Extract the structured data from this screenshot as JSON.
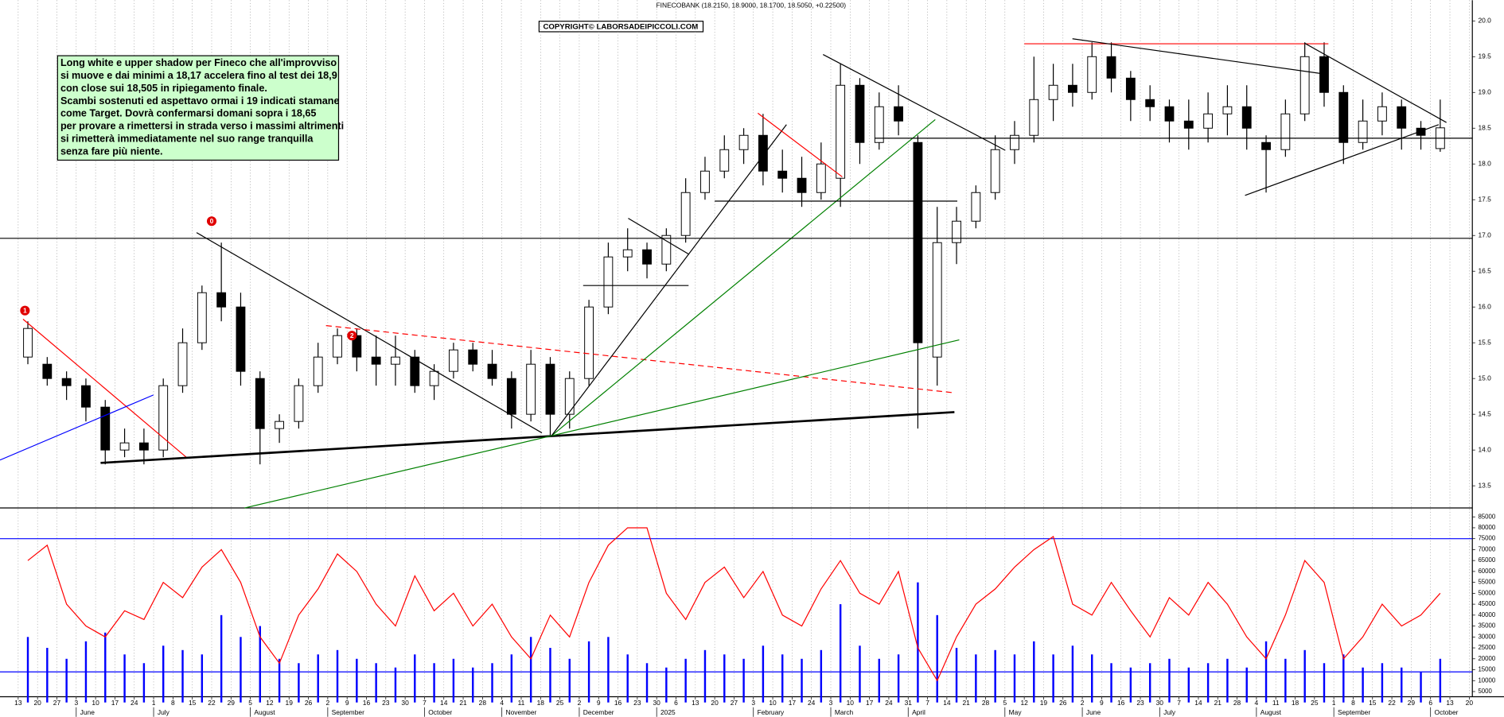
{
  "chart_data": {
    "type": "candlestick",
    "title": "FINECOBANK (18.2150, 18.9000, 18.1700, 18.5050, +0.22500)",
    "copyright": "COPYRIGHT© LABORSADEIPICCOLI.COM",
    "comment": [
      "Long white e upper shadow per Fineco che all'improvviso",
      "si muove e dai minimi a 18,17 accelera fino al test dei 18,9",
      "con close sui 18,505 in ripiegamento finale.",
      "Scambi sostenuti ed aspettavo ormai i 19 indicati stamane",
      "come Target. Dovrà confermarsi domani sopra i 18,65",
      "per provare a rimettersi in strada verso i massimi altrimenti",
      "si rimetterà immediatamente nel suo range tranquilla",
      "senza fare più niente."
    ],
    "grid": true,
    "xlim": [
      -0.94,
      75.16
    ],
    "ylim": [
      13.19,
      20.29
    ],
    "yticks": [
      {
        "value": 13.5,
        "label": "13.5"
      },
      {
        "value": 14,
        "label": "14.0"
      },
      {
        "value": 14.5,
        "label": "14.5"
      },
      {
        "value": 15,
        "label": "15.0"
      },
      {
        "value": 15.5,
        "label": "15.5"
      },
      {
        "value": 16,
        "label": "16.0"
      },
      {
        "value": 16.5,
        "label": "16.5"
      },
      {
        "value": 17,
        "label": "17.0"
      },
      {
        "value": 17.5,
        "label": "17.5"
      },
      {
        "value": 18,
        "label": "18.0"
      },
      {
        "value": 18.5,
        "label": "18.5"
      },
      {
        "value": 19,
        "label": "19.0"
      },
      {
        "value": 19.5,
        "label": "19.5"
      },
      {
        "value": 20,
        "label": "20.0"
      }
    ],
    "x_day_labels": [
      13,
      20,
      27,
      3,
      10,
      17,
      24,
      1,
      8,
      15,
      22,
      29,
      5,
      12,
      19,
      26,
      2,
      9,
      16,
      23,
      30,
      7,
      14,
      21,
      28,
      4,
      11,
      18,
      25,
      2,
      9,
      16,
      23,
      30,
      6,
      13,
      20,
      27,
      3,
      10,
      17,
      24,
      3,
      10,
      17,
      24,
      31,
      7,
      14,
      21,
      28,
      5,
      12,
      19,
      26,
      2,
      9,
      16,
      23,
      30,
      7,
      14,
      21,
      28,
      4,
      11,
      18,
      25,
      1,
      8,
      15,
      22,
      29,
      6,
      13,
      20
    ],
    "months": [
      {
        "label": "June",
        "week": 3
      },
      {
        "label": "July",
        "week": 7
      },
      {
        "label": "August",
        "week": 12
      },
      {
        "label": "September",
        "week": 16
      },
      {
        "label": "October",
        "week": 21
      },
      {
        "label": "November",
        "week": 25
      },
      {
        "label": "December",
        "week": 29
      },
      {
        "label": "2025",
        "week": 33
      },
      {
        "label": "February",
        "week": 38
      },
      {
        "label": "March",
        "week": 42
      },
      {
        "label": "April",
        "week": 46
      },
      {
        "label": "May",
        "week": 51
      },
      {
        "label": "June",
        "week": 55
      },
      {
        "label": "July",
        "week": 59
      },
      {
        "label": "August",
        "week": 64
      },
      {
        "label": "September",
        "week": 68
      },
      {
        "label": "October",
        "week": 73
      }
    ],
    "up_color": "#ffffff",
    "down_color": "#000000",
    "open": [
      15.3,
      15.2,
      15.0,
      14.9,
      14.6,
      14.0,
      14.1,
      14.0,
      14.9,
      15.5,
      16.2,
      16.0,
      15.0,
      14.3,
      14.4,
      14.9,
      15.3,
      15.6,
      15.3,
      15.2,
      15.3,
      14.9,
      15.1,
      15.4,
      15.2,
      15.0,
      14.5,
      15.2,
      14.5,
      15.0,
      16.0,
      16.7,
      16.8,
      16.6,
      17.0,
      17.6,
      17.9,
      18.2,
      18.4,
      17.9,
      17.8,
      17.6,
      17.8,
      19.1,
      18.3,
      18.8,
      18.3,
      15.3,
      16.9,
      17.2,
      17.6,
      18.2,
      18.4,
      18.9,
      19.1,
      19.0,
      19.5,
      19.2,
      18.9,
      18.8,
      18.6,
      18.5,
      18.7,
      18.8,
      18.3,
      18.2,
      18.7,
      19.5,
      19.0,
      18.3,
      18.6,
      18.8,
      18.5,
      18.215
    ],
    "high": [
      15.8,
      15.3,
      15.1,
      15.0,
      14.7,
      14.3,
      14.3,
      15.0,
      15.7,
      16.3,
      16.9,
      16.2,
      15.1,
      14.5,
      15.0,
      15.5,
      15.7,
      15.7,
      15.6,
      15.6,
      15.4,
      15.2,
      15.5,
      15.5,
      15.4,
      15.1,
      15.4,
      15.3,
      15.1,
      16.1,
      16.9,
      17.1,
      16.9,
      17.1,
      17.8,
      18.1,
      18.4,
      18.5,
      18.7,
      18.2,
      18.1,
      18.3,
      19.4,
      19.2,
      19.0,
      19.1,
      18.4,
      17.4,
      17.4,
      17.7,
      18.4,
      18.6,
      19.5,
      19.4,
      19.4,
      19.7,
      19.7,
      19.3,
      19.1,
      18.9,
      18.9,
      19.0,
      19.1,
      19.1,
      18.4,
      18.9,
      19.7,
      19.7,
      19.1,
      18.9,
      19.0,
      18.9,
      18.6,
      18.9
    ],
    "low": [
      15.2,
      14.9,
      14.7,
      14.4,
      13.8,
      13.9,
      13.8,
      13.9,
      14.8,
      15.4,
      15.8,
      14.9,
      13.8,
      14.1,
      14.3,
      14.8,
      15.2,
      15.1,
      14.9,
      14.9,
      14.8,
      14.7,
      15.0,
      15.1,
      14.9,
      14.3,
      14.4,
      14.2,
      14.3,
      14.9,
      15.9,
      16.5,
      16.4,
      16.5,
      16.9,
      17.5,
      17.8,
      18.0,
      17.7,
      17.6,
      17.4,
      17.5,
      17.4,
      18.0,
      18.2,
      18.4,
      14.3,
      14.9,
      16.6,
      17.1,
      17.5,
      18.0,
      18.3,
      18.6,
      18.8,
      18.9,
      19.0,
      18.6,
      18.6,
      18.3,
      18.2,
      18.3,
      18.4,
      18.2,
      17.6,
      18.1,
      18.6,
      18.8,
      18.0,
      18.2,
      18.4,
      18.2,
      18.2,
      18.17
    ],
    "close": [
      15.7,
      15.0,
      14.9,
      14.6,
      14.0,
      14.1,
      14.0,
      14.9,
      15.5,
      16.2,
      16.0,
      15.1,
      14.3,
      14.4,
      14.9,
      15.3,
      15.6,
      15.3,
      15.2,
      15.3,
      14.9,
      15.1,
      15.4,
      15.2,
      15.0,
      14.5,
      15.2,
      14.5,
      15.0,
      16.0,
      16.7,
      16.8,
      16.6,
      17.0,
      17.6,
      17.9,
      18.2,
      18.4,
      17.9,
      17.8,
      17.6,
      18.0,
      19.1,
      18.3,
      18.8,
      18.6,
      15.5,
      16.9,
      17.2,
      17.6,
      18.2,
      18.4,
      18.9,
      19.1,
      19.0,
      19.5,
      19.2,
      18.9,
      18.8,
      18.6,
      18.5,
      18.7,
      18.8,
      18.5,
      18.2,
      18.7,
      19.5,
      19.0,
      18.3,
      18.6,
      18.8,
      18.5,
      18.4,
      18.505
    ],
    "trendlines": [
      {
        "x": [
          0.25,
          8.73
        ],
        "y": [
          15.83,
          13.89
        ],
        "color": "#ff0000",
        "dash": false,
        "width": 1
      },
      {
        "x": [
          -0.94,
          6.99
        ],
        "y": [
          13.86,
          14.77
        ],
        "color": "#0000ff",
        "dash": false,
        "width": 1
      },
      {
        "x": [
          4.26,
          48.39
        ],
        "y": [
          13.82,
          14.53
        ],
        "color": "#000000",
        "dash": false,
        "width": 2.2
      },
      {
        "x": [
          9.22,
          27.07
        ],
        "y": [
          17.04,
          14.24
        ],
        "color": "#000000",
        "dash": false,
        "width": 1
      },
      {
        "x": [
          15.91,
          48.39
        ],
        "y": [
          15.74,
          14.8
        ],
        "color": "#ff0000",
        "dash": true,
        "width": 1
      },
      {
        "x": [
          11.7,
          48.64
        ],
        "y": [
          13.19,
          15.54
        ],
        "color": "#008000",
        "dash": false,
        "width": 1
      },
      {
        "x": [
          27.57,
          47.4
        ],
        "y": [
          14.2,
          18.62
        ],
        "color": "#008000",
        "dash": false,
        "width": 1
      },
      {
        "x": [
          27.57,
          39.71
        ],
        "y": [
          14.2,
          18.55
        ],
        "color": "#000000",
        "dash": false,
        "width": 1
      },
      {
        "x": [
          -0.94,
          75.16
        ],
        "y": [
          16.96,
          16.96
        ],
        "color": "#000000",
        "dash": false,
        "width": 1
      },
      {
        "x": [
          44.27,
          75.16
        ],
        "y": [
          18.36,
          18.36
        ],
        "color": "#000000",
        "dash": false,
        "width": 1
      },
      {
        "x": [
          29.2,
          34.65
        ],
        "y": [
          16.3,
          16.3
        ],
        "color": "#000000",
        "dash": false,
        "width": 1
      },
      {
        "x": [
          36.0,
          48.54
        ],
        "y": [
          17.48,
          17.48
        ],
        "color": "#000000",
        "dash": false,
        "width": 1
      },
      {
        "x": [
          31.53,
          34.65
        ],
        "y": [
          17.24,
          16.74
        ],
        "color": "#000000",
        "dash": false,
        "width": 1
      },
      {
        "x": [
          38.23,
          42.59
        ],
        "y": [
          18.71,
          17.82
        ],
        "color": "#ff0000",
        "dash": false,
        "width": 1
      },
      {
        "x": [
          41.6,
          51.02
        ],
        "y": [
          19.53,
          18.19
        ],
        "color": "#000000",
        "dash": false,
        "width": 1
      },
      {
        "x": [
          52.0,
          67.72
        ],
        "y": [
          19.68,
          19.68
        ],
        "color": "#ff0000",
        "dash": false,
        "width": 1
      },
      {
        "x": [
          54.49,
          67.72
        ],
        "y": [
          19.75,
          19.25
        ],
        "color": "#000000",
        "dash": false,
        "width": 1
      },
      {
        "x": [
          66.48,
          73.82
        ],
        "y": [
          19.69,
          18.58
        ],
        "color": "#000000",
        "dash": false,
        "width": 1
      },
      {
        "x": [
          63.41,
          73.42
        ],
        "y": [
          17.56,
          18.55
        ],
        "color": "#000000",
        "dash": false,
        "width": 1
      }
    ],
    "markers": [
      {
        "label": "1",
        "x": 0.35,
        "y": 15.95,
        "color": "#e00000"
      },
      {
        "label": "0",
        "x": 10.0,
        "y": 17.2,
        "color": "#e00000"
      },
      {
        "label": "2",
        "x": 17.25,
        "y": 15.6,
        "color": "#e00000"
      }
    ],
    "lower": {
      "ylim": [
        0,
        86000
      ],
      "yticks": [
        5000,
        10000,
        15000,
        20000,
        25000,
        30000,
        35000,
        40000,
        45000,
        50000,
        55000,
        60000,
        65000,
        70000,
        75000,
        80000,
        85000
      ],
      "volume": {
        "color": "#0000ff",
        "values": [
          30000,
          25000,
          20000,
          28000,
          32000,
          22000,
          18000,
          26000,
          24000,
          22000,
          40000,
          30000,
          35000,
          20000,
          18000,
          22000,
          24000,
          20000,
          18000,
          16000,
          22000,
          18000,
          20000,
          16000,
          18000,
          22000,
          30000,
          25000,
          20000,
          28000,
          30000,
          22000,
          18000,
          16000,
          20000,
          24000,
          22000,
          20000,
          26000,
          22000,
          20000,
          24000,
          45000,
          26000,
          20000,
          22000,
          55000,
          40000,
          25000,
          22000,
          24000,
          22000,
          28000,
          22000,
          26000,
          22000,
          18000,
          16000,
          18000,
          20000,
          16000,
          18000,
          20000,
          16000,
          28000,
          20000,
          24000,
          18000,
          22000,
          16000,
          18000,
          16000,
          14000,
          20000
        ]
      },
      "oscillator": {
        "color": "#ff0000",
        "values": [
          65000,
          72000,
          45000,
          35000,
          30000,
          42000,
          38000,
          55000,
          48000,
          62000,
          70000,
          55000,
          30000,
          18000,
          40000,
          52000,
          68000,
          60000,
          45000,
          35000,
          58000,
          42000,
          50000,
          35000,
          45000,
          30000,
          20000,
          40000,
          30000,
          55000,
          72000,
          80000,
          80000,
          50000,
          38000,
          55000,
          62000,
          48000,
          60000,
          40000,
          35000,
          52000,
          65000,
          50000,
          45000,
          60000,
          25000,
          10000,
          30000,
          45000,
          52000,
          62000,
          70000,
          76000,
          45000,
          40000,
          55000,
          42000,
          30000,
          48000,
          40000,
          55000,
          45000,
          30000,
          20000,
          40000,
          65000,
          55000,
          20000,
          30000,
          45000,
          35000,
          40000,
          50000
        ]
      },
      "hlines": {
        "color": "#0000ff",
        "values": [
          75000,
          14000
        ]
      }
    }
  }
}
